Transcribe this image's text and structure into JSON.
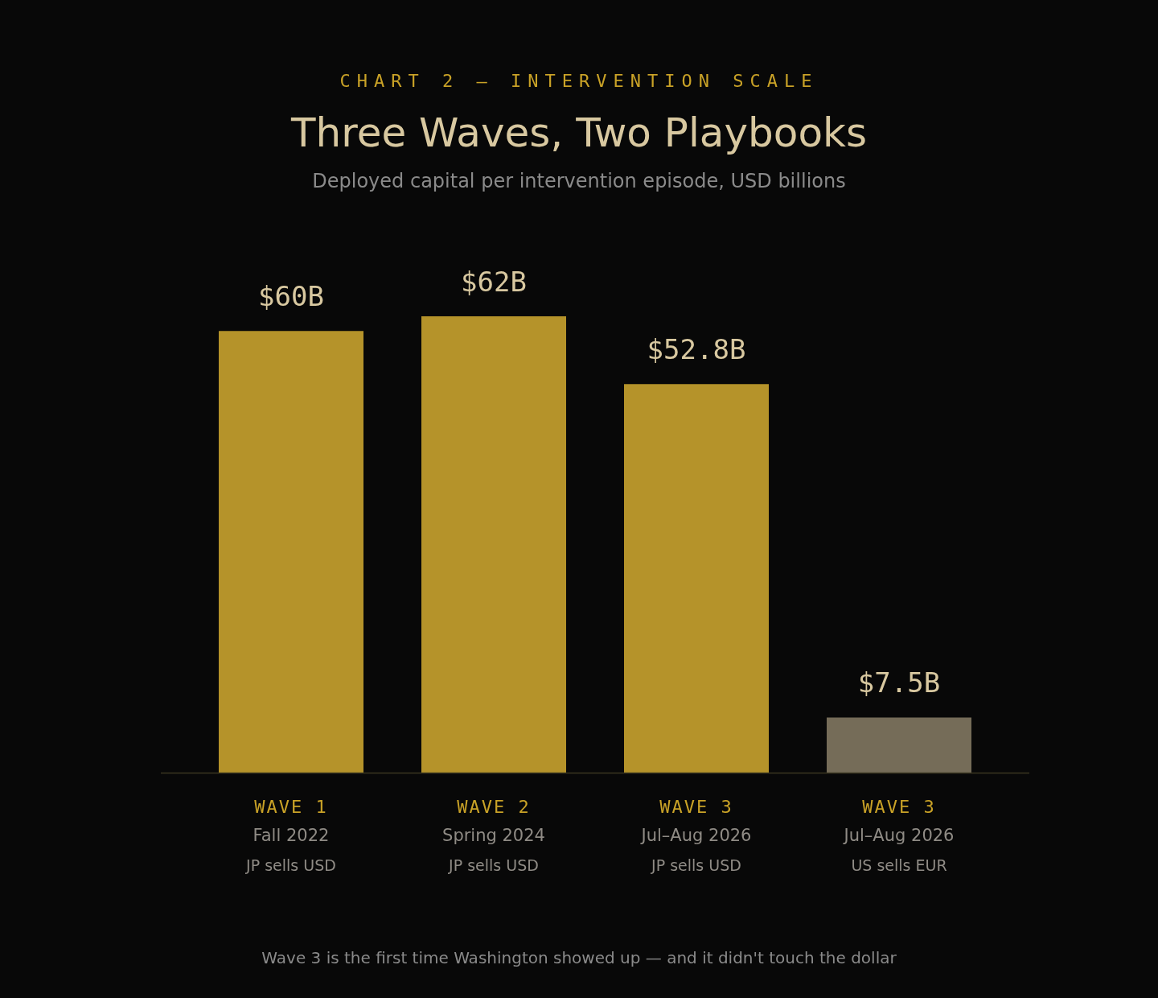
{
  "chart_data": {
    "type": "bar",
    "title": "Three Waves, Two Playbooks",
    "subtitle": "Deployed capital per intervention episode, USD billions",
    "categories": [
      "WAVE 1\nFall 2022\nJP sells USD",
      "WAVE 2\nSpring 2024\nJP sells USD",
      "WAVE 3\nJul–Aug 2026\nJP sells USD",
      "WAVE 3\nJul–Aug 2026\nUS sells EUR"
    ],
    "values": [
      60,
      62,
      52.8,
      7.5
    ],
    "colors": [
      "#b5932a",
      "#b5932a",
      "#b5932a",
      "#756c58"
    ],
    "value_labels": [
      "$60B",
      "$62B",
      "$52.8B",
      "$7.5B"
    ],
    "annotations": [
      "CHART 2 — INTERVENTION SCALE",
      "Wave 3 is the first time Washington showed up — and it didn't touch the dollar"
    ]
  }
}
